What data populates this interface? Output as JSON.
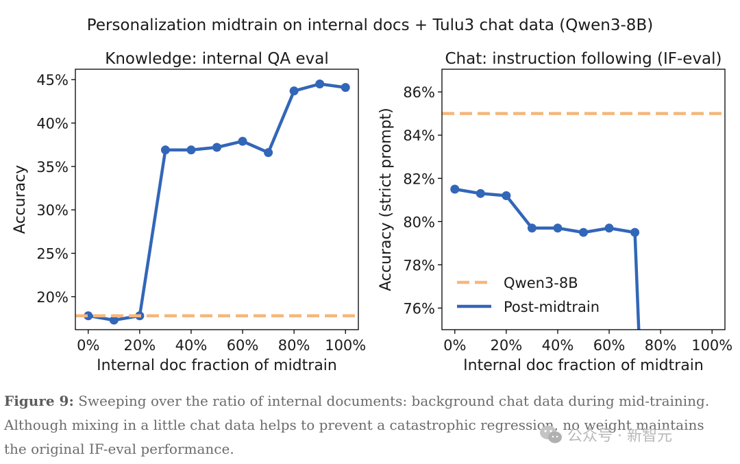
{
  "figure": {
    "suptitle": "Personalization midtrain on internal docs + Tulu3 chat data (Qwen3-8B)"
  },
  "colors": {
    "post": "#3266b8",
    "baseline": "#f5b77c",
    "axis": "#000000"
  },
  "chart_data": [
    {
      "type": "line",
      "title": "Knowledge: internal QA eval",
      "xlabel": "Internal doc fraction of midtrain",
      "ylabel": "Accuracy",
      "xlim": [
        -0.05,
        1.05
      ],
      "ylim": [
        0.162,
        0.462
      ],
      "xticks": [
        0,
        0.2,
        0.4,
        0.6,
        0.8,
        1.0
      ],
      "xtick_labels": [
        "0%",
        "20%",
        "40%",
        "60%",
        "80%",
        "100%"
      ],
      "yticks": [
        0.2,
        0.25,
        0.3,
        0.35,
        0.4,
        0.45
      ],
      "ytick_labels": [
        "20%",
        "25%",
        "30%",
        "35%",
        "40%",
        "45%"
      ],
      "grid": false,
      "legend": false,
      "series": [
        {
          "name": "Post-midtrain",
          "style": "solid-markers",
          "x": [
            0,
            0.1,
            0.2,
            0.3,
            0.4,
            0.5,
            0.6,
            0.7,
            0.8,
            0.9,
            1.0
          ],
          "y": [
            0.178,
            0.173,
            0.178,
            0.369,
            0.369,
            0.372,
            0.379,
            0.366,
            0.437,
            0.445,
            0.441
          ]
        },
        {
          "name": "Qwen3-8B",
          "style": "dashed-hline",
          "y": 0.178
        }
      ]
    },
    {
      "type": "line",
      "title": "Chat: instruction following (IF-eval)",
      "xlabel": "Internal doc fraction of midtrain",
      "ylabel": "Accuracy (strict prompt)",
      "xlim": [
        -0.05,
        1.05
      ],
      "ylim": [
        0.75,
        0.8705
      ],
      "xticks": [
        0,
        0.2,
        0.4,
        0.6,
        0.8,
        1.0
      ],
      "xtick_labels": [
        "0%",
        "20%",
        "40%",
        "60%",
        "80%",
        "100%"
      ],
      "yticks": [
        0.76,
        0.78,
        0.8,
        0.82,
        0.84,
        0.86
      ],
      "ytick_labels": [
        "76%",
        "78%",
        "80%",
        "82%",
        "84%",
        "86%"
      ],
      "grid": false,
      "legend": true,
      "legend_position": "lower-left",
      "series": [
        {
          "name": "Qwen3-8B",
          "style": "dashed-hline",
          "y": 0.85
        },
        {
          "name": "Post-midtrain",
          "style": "solid-markers",
          "x": [
            0,
            0.1,
            0.2,
            0.3,
            0.4,
            0.5,
            0.6,
            0.7,
            0.72
          ],
          "y": [
            0.815,
            0.813,
            0.812,
            0.797,
            0.797,
            0.795,
            0.797,
            0.795,
            0.735
          ],
          "markers": [
            true,
            true,
            true,
            true,
            true,
            true,
            true,
            true,
            false
          ]
        }
      ]
    }
  ],
  "caption": {
    "label": "Figure 9:",
    "text": " Sweeping over the ratio of internal documents: background chat data during mid-training. Although mixing in a little chat data helps to prevent a catastrophic regression, no weight maintains the original IF-eval performance."
  },
  "watermark": {
    "text": "公众号 · 新智元",
    "icon": "wechat-icon"
  }
}
